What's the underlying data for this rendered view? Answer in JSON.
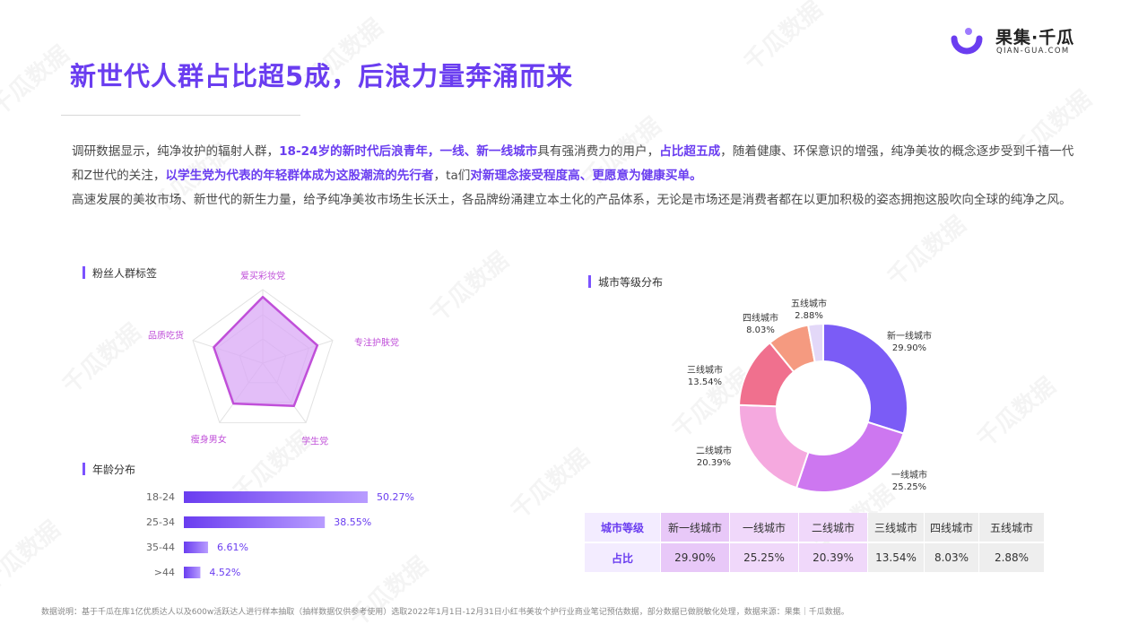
{
  "brand": {
    "name": "果集·千瓜",
    "domain": "QIAN-GUA.COM"
  },
  "title": "新世代人群占比超5成，后浪力量奔涌而来",
  "intro": {
    "p1_a": "调研数据显示，纯净妆护的辐射人群，",
    "p1_b": "18-24岁的新时代后浪青年，一线、新一线城市",
    "p1_c": "具有强消费力的用户，",
    "p1_d": "占比超五成",
    "p1_e": "，随着健康、环保意识的增强，纯净美妆的概念逐步受到千禧一代和Z世代的关注，",
    "p1_f": "以学生党为代表的年轻群体成为这股潮流的先行者",
    "p1_g": "，ta们",
    "p1_h": "对新理念接受程度高、更愿意为健康买单。",
    "p2": "高速发展的美妆市场、新世代的新生力量，给予纯净美妆市场生长沃土，各品牌纷涌建立本土化的产品体系，无论是市场还是消费者都在以更加积极的姿态拥抱这股吹向全球的纯净之风。"
  },
  "sections": {
    "radar": "粉丝人群标签",
    "age": "年龄分布",
    "city": "城市等级分布"
  },
  "watermark": "千瓜数据",
  "footnote": "数据说明：基于千瓜在库1亿优质达人以及600w活跃达人进行样本抽取（抽样数据仅供参考使用）选取2022年1月1日-12月31日小红书美妆个护行业商业笔记预估数据，部分数据已做脱敏化处理，数据来源：果集｜千瓜数据。",
  "colors": {
    "accent": "#6a3df0",
    "radar_fill": "#d9a8f5",
    "radar_stroke": "#c04fd9"
  },
  "chart_data": [
    {
      "type": "radar",
      "title": "粉丝人群标签",
      "categories": [
        "爱买彩妆党",
        "专注护肤党",
        "学生党",
        "瘦身男女",
        "品质吃货"
      ],
      "values": [
        0.9,
        0.78,
        0.72,
        0.68,
        0.7
      ],
      "value_scale": "relative 0-1, unlabeled axes"
    },
    {
      "type": "bar",
      "orientation": "horizontal",
      "title": "年龄分布",
      "categories": [
        "18-24",
        "25-34",
        "35-44",
        ">44"
      ],
      "values": [
        50.27,
        38.55,
        6.61,
        4.52
      ],
      "labels": [
        "50.27%",
        "38.55%",
        "6.61%",
        "4.52%"
      ],
      "unit": "%",
      "color": "#6a3df0"
    },
    {
      "type": "pie",
      "donut": true,
      "title": "城市等级分布",
      "categories": [
        "新一线城市",
        "一线城市",
        "二线城市",
        "三线城市",
        "四线城市",
        "五线城市"
      ],
      "values": [
        29.9,
        25.25,
        20.39,
        13.54,
        8.03,
        2.88
      ],
      "labels": [
        "29.90%",
        "25.25%",
        "20.39%",
        "13.54%",
        "8.03%",
        "2.88%"
      ],
      "colors": [
        "#7b5cf6",
        "#cd77f0",
        "#f5a9df",
        "#f0708e",
        "#f59a80",
        "#e3d8f8"
      ]
    },
    {
      "type": "table",
      "row_headers": [
        "城市等级",
        "占比"
      ],
      "columns": [
        "新一线城市",
        "一线城市",
        "二线城市",
        "三线城市",
        "四线城市",
        "五线城市"
      ],
      "values": [
        "29.90%",
        "25.25%",
        "20.39%",
        "13.54%",
        "8.03%",
        "2.88%"
      ],
      "column_colors": [
        "#e8c8f8",
        "#f0d8fa",
        "#f0d8fa",
        "#eeeeee",
        "#eeeeee",
        "#eeeeee"
      ]
    }
  ]
}
